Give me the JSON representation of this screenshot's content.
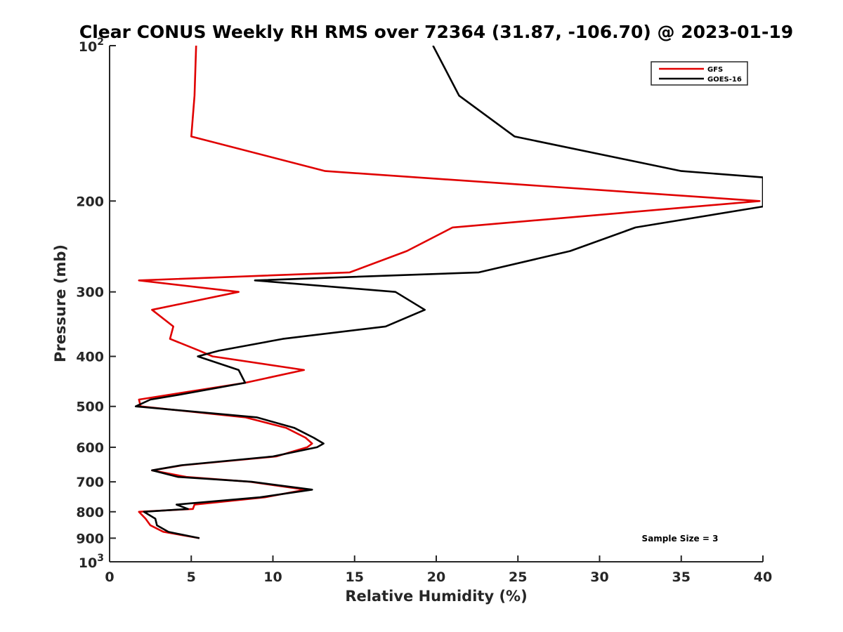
{
  "chart_data": {
    "type": "line",
    "title": "Clear CONUS Weekly RH RMS over 72364 (31.87, -106.70) @ 2023-01-19",
    "xlabel": "Relative Humidity (%)",
    "ylabel": "Pressure (mb)",
    "xlim": [
      0,
      40
    ],
    "ylim": [
      100,
      1000
    ],
    "y_scale": "log",
    "y_reversed": true,
    "x_ticks": [
      0,
      5,
      10,
      15,
      20,
      25,
      30,
      35,
      40
    ],
    "x_tick_labels": [
      "0",
      "5",
      "10",
      "15",
      "20",
      "25",
      "30",
      "35",
      "40"
    ],
    "y_ticks": [
      {
        "value": 100,
        "base": "10",
        "exp": "2"
      },
      {
        "value": 200,
        "label": "200"
      },
      {
        "value": 300,
        "label": "300"
      },
      {
        "value": 400,
        "label": "400"
      },
      {
        "value": 500,
        "label": "500"
      },
      {
        "value": 600,
        "label": "600"
      },
      {
        "value": 700,
        "label": "700"
      },
      {
        "value": 800,
        "label": "800"
      },
      {
        "value": 900,
        "label": "900"
      },
      {
        "value": 1000,
        "base": "10",
        "exp": "3"
      }
    ],
    "grid": false,
    "legend_position": "top-right",
    "annotation": "Sample Size = 3",
    "series": [
      {
        "name": "GFS",
        "color": "#e00000",
        "points": [
          [
            5.3,
            100
          ],
          [
            5.2,
            125
          ],
          [
            5.0,
            150
          ],
          [
            13.2,
            175
          ],
          [
            39.8,
            200
          ],
          [
            21.0,
            225
          ],
          [
            18.2,
            250
          ],
          [
            14.7,
            275
          ],
          [
            1.8,
            285
          ],
          [
            7.9,
            300
          ],
          [
            2.6,
            325
          ],
          [
            3.9,
            350
          ],
          [
            3.7,
            370
          ],
          [
            5.5,
            390
          ],
          [
            6.3,
            400
          ],
          [
            11.9,
            425
          ],
          [
            8.3,
            450
          ],
          [
            1.8,
            485
          ],
          [
            1.9,
            500
          ],
          [
            8.3,
            525
          ],
          [
            10.8,
            550
          ],
          [
            12.0,
            575
          ],
          [
            12.4,
            590
          ],
          [
            12.1,
            600
          ],
          [
            10.2,
            625
          ],
          [
            4.5,
            650
          ],
          [
            2.6,
            665
          ],
          [
            4.7,
            685
          ],
          [
            8.6,
            700
          ],
          [
            12.0,
            725
          ],
          [
            9.5,
            750
          ],
          [
            5.2,
            775
          ],
          [
            5.1,
            790
          ],
          [
            1.8,
            800
          ],
          [
            2.2,
            825
          ],
          [
            2.5,
            850
          ],
          [
            3.3,
            875
          ],
          [
            5.5,
            900
          ]
        ]
      },
      {
        "name": "GOES-16",
        "color": "#000000",
        "points": [
          [
            19.8,
            100
          ],
          [
            21.4,
            125
          ],
          [
            24.8,
            150
          ],
          [
            35.0,
            175
          ],
          [
            40.0,
            180
          ],
          [
            40.0,
            205
          ],
          [
            32.2,
            225
          ],
          [
            28.2,
            250
          ],
          [
            22.6,
            275
          ],
          [
            8.9,
            285
          ],
          [
            17.5,
            300
          ],
          [
            19.3,
            325
          ],
          [
            16.9,
            350
          ],
          [
            10.6,
            370
          ],
          [
            6.7,
            390
          ],
          [
            5.4,
            400
          ],
          [
            7.9,
            425
          ],
          [
            8.3,
            450
          ],
          [
            4.2,
            475
          ],
          [
            2.5,
            485
          ],
          [
            1.6,
            500
          ],
          [
            9.0,
            525
          ],
          [
            11.3,
            550
          ],
          [
            12.5,
            575
          ],
          [
            13.1,
            590
          ],
          [
            12.7,
            600
          ],
          [
            10.0,
            625
          ],
          [
            4.4,
            650
          ],
          [
            2.6,
            665
          ],
          [
            4.2,
            685
          ],
          [
            8.7,
            700
          ],
          [
            12.4,
            725
          ],
          [
            9.2,
            750
          ],
          [
            4.1,
            775
          ],
          [
            4.8,
            790
          ],
          [
            2.1,
            800
          ],
          [
            2.8,
            825
          ],
          [
            2.9,
            850
          ],
          [
            3.6,
            875
          ],
          [
            5.5,
            900
          ]
        ]
      }
    ]
  }
}
